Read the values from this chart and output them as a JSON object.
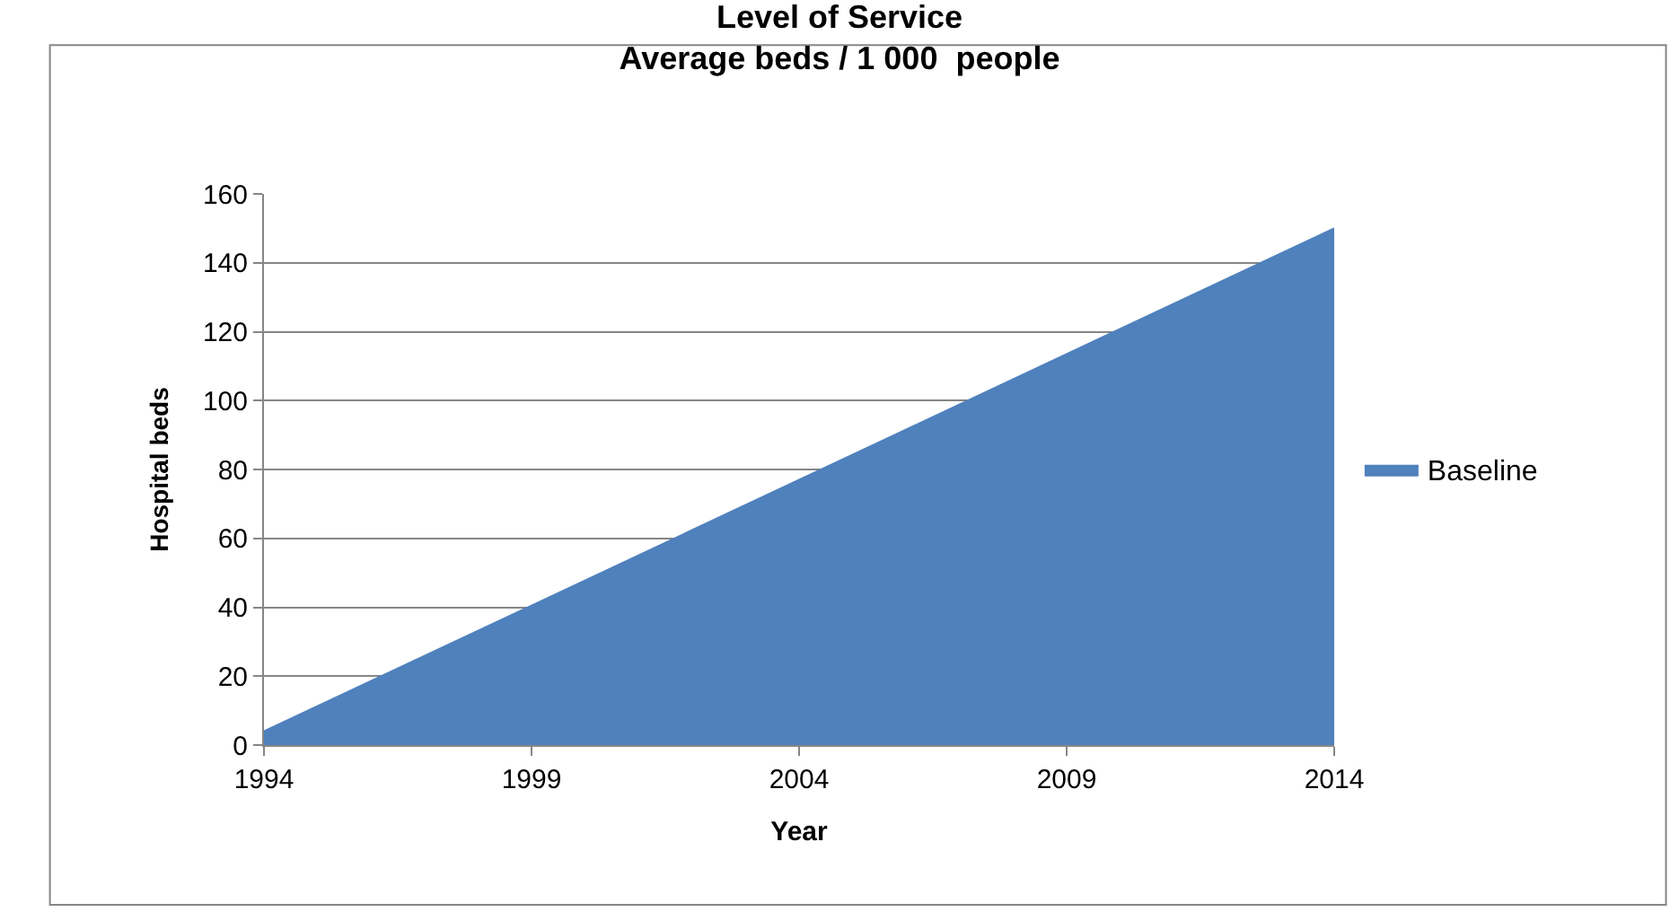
{
  "chart_data": {
    "type": "area",
    "title": "Level of Service",
    "subtitle": "Average beds / 1 000  people",
    "xlabel": "Year",
    "ylabel": "Hospital beds",
    "x": [
      1994,
      2014
    ],
    "series": [
      {
        "name": "Baseline",
        "color": "#4f81bd",
        "values": [
          4,
          150
        ]
      }
    ],
    "xlim": [
      1994,
      2014
    ],
    "xticks": [
      1994,
      1999,
      2004,
      2009,
      2014
    ],
    "ylim": [
      0,
      160
    ],
    "yticks": [
      0,
      20,
      40,
      60,
      80,
      100,
      120,
      140,
      160
    ],
    "grid": "y",
    "legend": "right"
  }
}
